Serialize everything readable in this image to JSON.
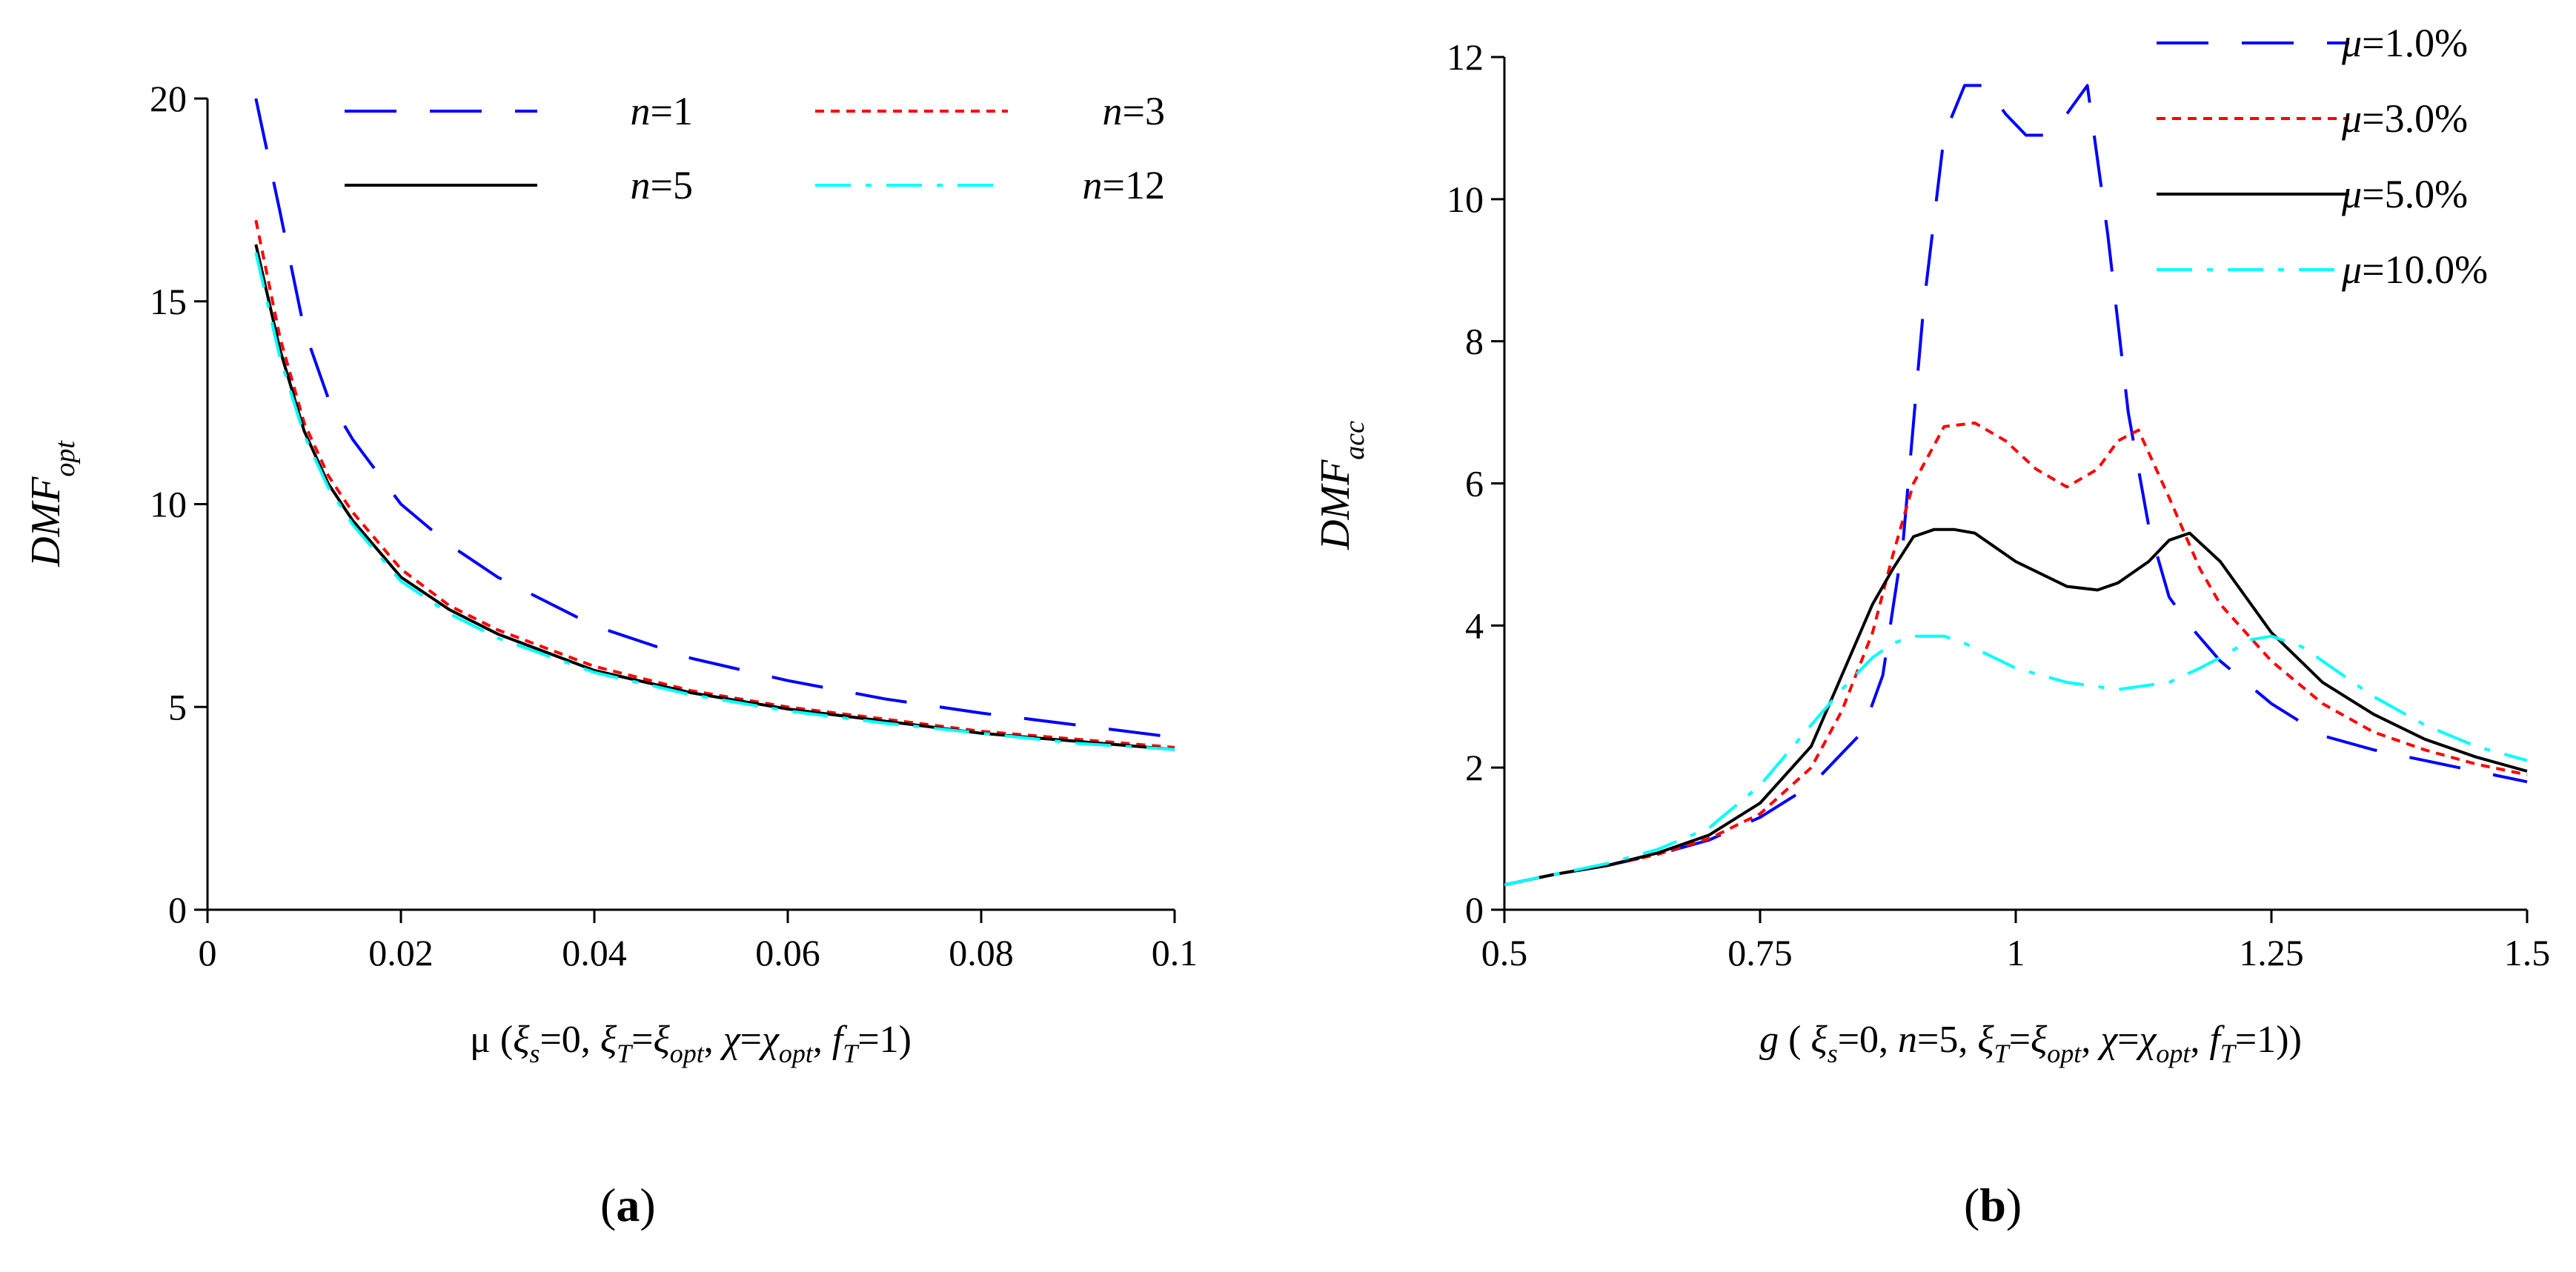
{
  "panels": [
    {
      "id": "a",
      "caption_open": "(",
      "caption_letter": "a",
      "caption_close": ")"
    },
    {
      "id": "b",
      "caption_open": "(",
      "caption_letter": "b",
      "caption_close": ")"
    }
  ],
  "chart_data": [
    {
      "type": "line",
      "panel": "a",
      "ylabel_main": "DMF",
      "ylabel_sub": "opt",
      "xlabel_parts": [
        {
          "t": "μ (",
          "style": "n"
        },
        {
          "t": "ξ",
          "style": "i"
        },
        {
          "t": "s",
          "style": "sub"
        },
        {
          "t": "=0,  ",
          "style": "n"
        },
        {
          "t": "ξ",
          "style": "i"
        },
        {
          "t": "T",
          "style": "sub"
        },
        {
          "t": "=",
          "style": "n"
        },
        {
          "t": "ξ",
          "style": "i"
        },
        {
          "t": "opt",
          "style": "sub"
        },
        {
          "t": ",  ",
          "style": "n"
        },
        {
          "t": "χ",
          "style": "i"
        },
        {
          "t": "=",
          "style": "n"
        },
        {
          "t": "χ",
          "style": "i"
        },
        {
          "t": "opt",
          "style": "sub"
        },
        {
          "t": ",  ",
          "style": "n"
        },
        {
          "t": "f",
          "style": "i"
        },
        {
          "t": "T",
          "style": "sub"
        },
        {
          "t": "=1)",
          "style": "n"
        }
      ],
      "xlim": [
        0,
        0.1
      ],
      "ylim": [
        0,
        20
      ],
      "xticks": [
        0,
        0.02,
        0.04,
        0.06,
        0.08,
        0.1
      ],
      "xtick_labels": [
        "0",
        "0.02",
        "0.04",
        "0.06",
        "0.08",
        "0.1"
      ],
      "yticks": [
        0,
        5,
        10,
        15,
        20
      ],
      "ytick_labels": [
        "0",
        "5",
        "10",
        "15",
        "20"
      ],
      "legend_position": "top",
      "x": [
        0.005,
        0.0075,
        0.01,
        0.0125,
        0.015,
        0.02,
        0.025,
        0.03,
        0.04,
        0.05,
        0.06,
        0.07,
        0.08,
        0.09,
        0.1
      ],
      "series": [
        {
          "name": "n=1",
          "var": "n",
          "val": "=1",
          "color": "#0000ff",
          "dash": "70,45",
          "values": [
            20.0,
            17.2,
            14.3,
            12.6,
            11.6,
            10.0,
            9.0,
            8.2,
            7.0,
            6.2,
            5.65,
            5.2,
            4.85,
            4.55,
            4.25
          ]
        },
        {
          "name": "n=3",
          "var": "n",
          "val": "=3",
          "color": "#ff0000",
          "dash": "12,9",
          "values": [
            17.0,
            14.1,
            12.0,
            10.7,
            9.8,
            8.4,
            7.5,
            6.9,
            6.0,
            5.4,
            5.0,
            4.7,
            4.4,
            4.2,
            4.0
          ]
        },
        {
          "name": "n=5",
          "var": "n",
          "val": "=5",
          "color": "#000000",
          "dash": "",
          "values": [
            16.4,
            13.8,
            11.8,
            10.5,
            9.6,
            8.2,
            7.4,
            6.8,
            5.9,
            5.35,
            4.95,
            4.65,
            4.35,
            4.15,
            3.95
          ]
        },
        {
          "name": "n=12",
          "var": "n",
          "val": "=12",
          "color": "#00ffff",
          "dash": "48,20,8,20",
          "values": [
            16.2,
            13.6,
            11.7,
            10.4,
            9.5,
            8.1,
            7.3,
            6.7,
            5.85,
            5.3,
            4.9,
            4.6,
            4.35,
            4.1,
            3.95
          ]
        }
      ]
    },
    {
      "type": "line",
      "panel": "b",
      "ylabel_main": "DMF",
      "ylabel_sub": "acc",
      "xlabel_parts": [
        {
          "t": "g",
          "style": "i"
        },
        {
          "t": " ( ",
          "style": "n"
        },
        {
          "t": "ξ",
          "style": "i"
        },
        {
          "t": "s",
          "style": "sub"
        },
        {
          "t": "=0,  ",
          "style": "n"
        },
        {
          "t": "n",
          "style": "i"
        },
        {
          "t": "=5,  ",
          "style": "n"
        },
        {
          "t": "ξ",
          "style": "i"
        },
        {
          "t": "T",
          "style": "sub"
        },
        {
          "t": "=",
          "style": "n"
        },
        {
          "t": "ξ",
          "style": "i"
        },
        {
          "t": "opt",
          "style": "sub"
        },
        {
          "t": ",  ",
          "style": "n"
        },
        {
          "t": "χ",
          "style": "i"
        },
        {
          "t": "=",
          "style": "n"
        },
        {
          "t": "χ",
          "style": "i"
        },
        {
          "t": "opt",
          "style": "sub"
        },
        {
          "t": ",  ",
          "style": "n"
        },
        {
          "t": "f",
          "style": "i"
        },
        {
          "t": "T",
          "style": "sub"
        },
        {
          "t": "=1))",
          "style": "n"
        }
      ],
      "xlim": [
        0.5,
        1.5
      ],
      "ylim": [
        0,
        12
      ],
      "xticks": [
        0.5,
        0.75,
        1,
        1.25,
        1.5
      ],
      "xtick_labels": [
        "0.5",
        "0.75",
        "1",
        "1.25",
        "1.5"
      ],
      "yticks": [
        0,
        2,
        4,
        6,
        8,
        10,
        12
      ],
      "ytick_labels": [
        "0",
        "2",
        "4",
        "6",
        "8",
        "10",
        "12"
      ],
      "legend_position": "top-right",
      "series": [
        {
          "name": "μ=1.0%",
          "var": "μ",
          "val": "=1.0%",
          "color": "#0000ff",
          "dash": "70,45",
          "x": [
            0.5,
            0.55,
            0.6,
            0.65,
            0.7,
            0.75,
            0.8,
            0.85,
            0.87,
            0.89,
            0.91,
            0.93,
            0.95,
            0.97,
            0.99,
            1.01,
            1.03,
            1.05,
            1.07,
            1.09,
            1.11,
            1.13,
            1.15,
            1.17,
            1.2,
            1.25,
            1.3,
            1.35,
            1.4,
            1.45,
            1.5
          ],
          "values": [
            0.35,
            0.5,
            0.62,
            0.78,
            0.98,
            1.3,
            1.75,
            2.5,
            3.3,
            5.2,
            8.5,
            10.9,
            11.6,
            11.6,
            11.2,
            10.9,
            10.9,
            11.2,
            11.6,
            9.5,
            7.0,
            5.4,
            4.4,
            4.0,
            3.5,
            2.9,
            2.45,
            2.25,
            2.1,
            1.95,
            1.8
          ]
        },
        {
          "name": "μ=3.0%",
          "var": "μ",
          "val": "=3.0%",
          "color": "#ff0000",
          "dash": "12,9",
          "x": [
            0.5,
            0.55,
            0.6,
            0.65,
            0.7,
            0.75,
            0.8,
            0.83,
            0.86,
            0.88,
            0.9,
            0.93,
            0.96,
            0.99,
            1.02,
            1.05,
            1.08,
            1.1,
            1.12,
            1.15,
            1.18,
            1.2,
            1.25,
            1.3,
            1.35,
            1.4,
            1.45,
            1.5
          ],
          "values": [
            0.35,
            0.5,
            0.62,
            0.78,
            1.0,
            1.35,
            2.0,
            2.8,
            3.9,
            5.0,
            6.0,
            6.8,
            6.85,
            6.6,
            6.2,
            5.95,
            6.2,
            6.6,
            6.75,
            5.8,
            4.8,
            4.3,
            3.5,
            2.9,
            2.5,
            2.25,
            2.05,
            1.9
          ]
        },
        {
          "name": "μ=5.0%",
          "var": "μ",
          "val": "=5.0%",
          "color": "#000000",
          "dash": "",
          "x": [
            0.5,
            0.55,
            0.6,
            0.65,
            0.7,
            0.75,
            0.8,
            0.83,
            0.86,
            0.88,
            0.9,
            0.92,
            0.94,
            0.96,
            0.98,
            1.0,
            1.05,
            1.08,
            1.1,
            1.13,
            1.15,
            1.17,
            1.2,
            1.25,
            1.3,
            1.35,
            1.4,
            1.45,
            1.5
          ],
          "values": [
            0.35,
            0.5,
            0.62,
            0.8,
            1.05,
            1.5,
            2.3,
            3.3,
            4.3,
            4.8,
            5.25,
            5.35,
            5.35,
            5.3,
            5.1,
            4.9,
            4.55,
            4.5,
            4.6,
            4.9,
            5.2,
            5.3,
            4.9,
            3.9,
            3.2,
            2.75,
            2.4,
            2.15,
            1.95
          ]
        },
        {
          "name": "μ=10.0%",
          "var": "μ",
          "val": "=10.0%",
          "color": "#00ffff",
          "dash": "48,20,8,20",
          "x": [
            0.5,
            0.55,
            0.6,
            0.65,
            0.7,
            0.75,
            0.8,
            0.83,
            0.86,
            0.88,
            0.9,
            0.93,
            0.95,
            1.0,
            1.05,
            1.1,
            1.15,
            1.18,
            1.2,
            1.23,
            1.25,
            1.28,
            1.3,
            1.35,
            1.4,
            1.45,
            1.5
          ],
          "values": [
            0.35,
            0.5,
            0.65,
            0.85,
            1.15,
            1.75,
            2.6,
            3.1,
            3.55,
            3.75,
            3.85,
            3.85,
            3.75,
            3.4,
            3.2,
            3.1,
            3.2,
            3.4,
            3.55,
            3.8,
            3.85,
            3.7,
            3.5,
            3.0,
            2.6,
            2.3,
            2.1
          ]
        }
      ]
    }
  ]
}
